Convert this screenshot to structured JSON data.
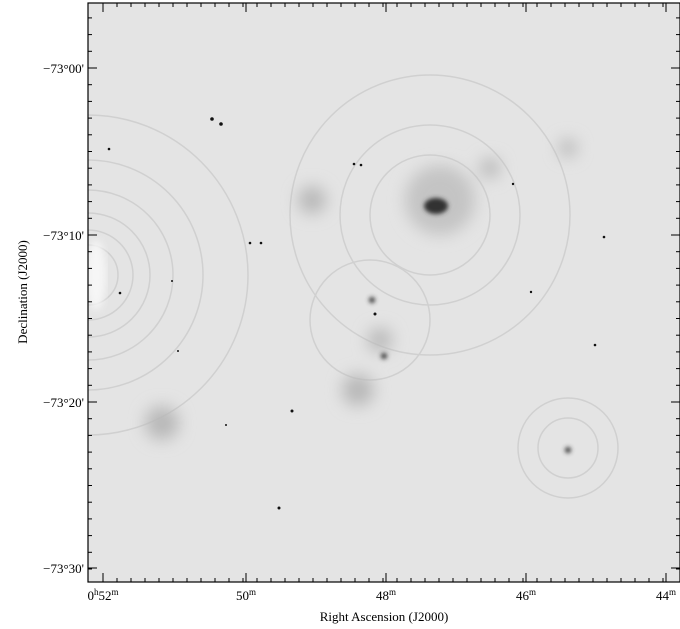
{
  "x_axis": {
    "label": "Right Ascension (J2000)",
    "ticks": [
      {
        "parts": [
          "0",
          "h",
          "52",
          "m"
        ]
      },
      {
        "parts": [
          "50",
          "m"
        ]
      },
      {
        "parts": [
          "48",
          "m"
        ]
      },
      {
        "parts": [
          "46",
          "m"
        ]
      },
      {
        "parts": [
          "44",
          "m"
        ]
      }
    ]
  },
  "y_axis": {
    "label": "Declination (J2000)",
    "ticks": [
      "−73°00'",
      "−73°10'",
      "−73°20'",
      "−73°30'"
    ]
  }
}
